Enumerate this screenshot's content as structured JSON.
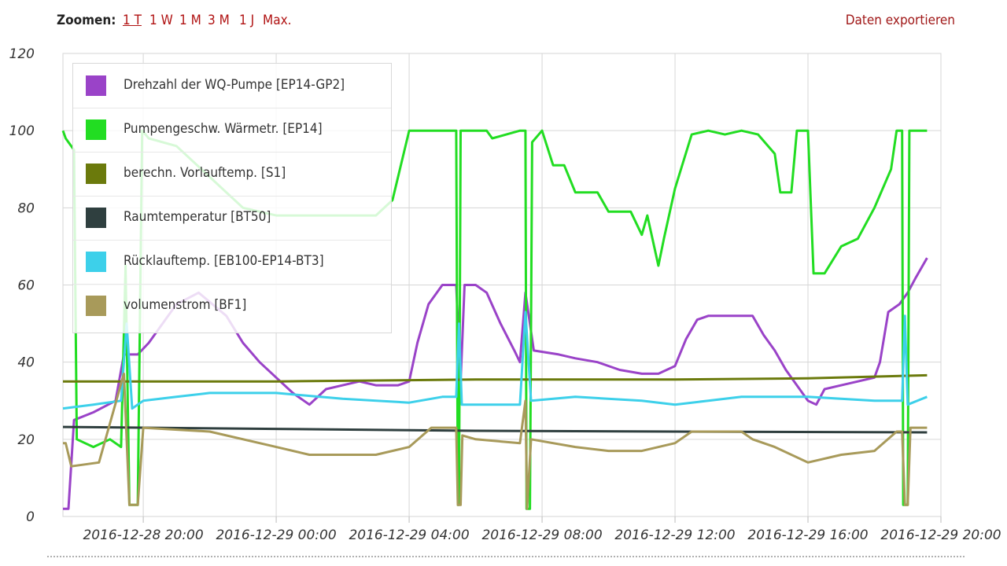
{
  "toolbar": {
    "zoom_label": "Zoomen:",
    "zoom_options": [
      "1 T",
      "1 W",
      "1 M",
      "3 M",
      "1 J",
      "Max."
    ],
    "export_label": "Daten exportieren"
  },
  "colors": {
    "purple": "#9a43c8",
    "green": "#22dd22",
    "olive": "#6b7a0c",
    "darkgray": "#2f3f3f",
    "cyan": "#3dd0ea",
    "khaki": "#a89a5a",
    "link": "#b01212"
  },
  "chart_data": {
    "type": "line",
    "title": "",
    "xlabel": "",
    "ylabel": "",
    "ylim": [
      0,
      120
    ],
    "xlim": [
      "2016-12-28 17:35",
      "2016-12-29 20:00"
    ],
    "yticks": [
      0,
      20,
      40,
      60,
      80,
      100,
      120
    ],
    "xticks": [
      "2016-12-28 20:00",
      "2016-12-29 00:00",
      "2016-12-29 04:00",
      "2016-12-29 08:00",
      "2016-12-29 12:00",
      "2016-12-29 16:00",
      "2016-12-29 20:00"
    ],
    "grid": true,
    "legend_position": "top-left",
    "series": [
      {
        "name": "Drehzahl der WQ-Pumpe [EP14-GP2]",
        "color": "#9a43c8",
        "points": [
          [
            "2016-12-28 17:35",
            2
          ],
          [
            "2016-12-28 17:45",
            2
          ],
          [
            "2016-12-28 17:55",
            25
          ],
          [
            "2016-12-28 18:30",
            27
          ],
          [
            "2016-12-28 19:10",
            30
          ],
          [
            "2016-12-28 19:25",
            42
          ],
          [
            "2016-12-28 19:50",
            42
          ],
          [
            "2016-12-28 20:10",
            45
          ],
          [
            "2016-12-28 21:00",
            55
          ],
          [
            "2016-12-28 21:40",
            58
          ],
          [
            "2016-12-28 22:30",
            52
          ],
          [
            "2016-12-28 23:00",
            45
          ],
          [
            "2016-12-28 23:30",
            40
          ],
          [
            "2016-12-29 00:00",
            36
          ],
          [
            "2016-12-29 00:30",
            32
          ],
          [
            "2016-12-29 01:00",
            29
          ],
          [
            "2016-12-29 01:30",
            33
          ],
          [
            "2016-12-29 02:00",
            34
          ],
          [
            "2016-12-29 02:30",
            35
          ],
          [
            "2016-12-29 03:00",
            34
          ],
          [
            "2016-12-29 03:40",
            34
          ],
          [
            "2016-12-29 04:00",
            35
          ],
          [
            "2016-12-29 04:15",
            45
          ],
          [
            "2016-12-29 04:35",
            55
          ],
          [
            "2016-12-29 05:00",
            60
          ],
          [
            "2016-12-29 05:25",
            60
          ],
          [
            "2016-12-29 05:33",
            35
          ],
          [
            "2016-12-29 05:40",
            60
          ],
          [
            "2016-12-29 06:00",
            60
          ],
          [
            "2016-12-29 06:20",
            58
          ],
          [
            "2016-12-29 06:45",
            50
          ],
          [
            "2016-12-29 07:10",
            43
          ],
          [
            "2016-12-29 07:20",
            40
          ],
          [
            "2016-12-29 07:30",
            58
          ],
          [
            "2016-12-29 07:45",
            43
          ],
          [
            "2016-12-29 08:30",
            42
          ],
          [
            "2016-12-29 09:00",
            41
          ],
          [
            "2016-12-29 09:40",
            40
          ],
          [
            "2016-12-29 10:20",
            38
          ],
          [
            "2016-12-29 11:00",
            37
          ],
          [
            "2016-12-29 11:30",
            37
          ],
          [
            "2016-12-29 12:00",
            39
          ],
          [
            "2016-12-29 12:20",
            46
          ],
          [
            "2016-12-29 12:40",
            51
          ],
          [
            "2016-12-29 13:00",
            52
          ],
          [
            "2016-12-29 13:40",
            52
          ],
          [
            "2016-12-29 14:20",
            52
          ],
          [
            "2016-12-29 14:40",
            47
          ],
          [
            "2016-12-29 15:00",
            43
          ],
          [
            "2016-12-29 15:20",
            38
          ],
          [
            "2016-12-29 15:40",
            34
          ],
          [
            "2016-12-29 16:00",
            30
          ],
          [
            "2016-12-29 16:15",
            29
          ],
          [
            "2016-12-29 16:30",
            33
          ],
          [
            "2016-12-29 17:00",
            34
          ],
          [
            "2016-12-29 17:30",
            35
          ],
          [
            "2016-12-29 18:00",
            36
          ],
          [
            "2016-12-29 18:10",
            40
          ],
          [
            "2016-12-29 18:25",
            53
          ],
          [
            "2016-12-29 18:45",
            55
          ],
          [
            "2016-12-29 19:00",
            58
          ],
          [
            "2016-12-29 19:15",
            62
          ],
          [
            "2016-12-29 19:35",
            67
          ]
        ]
      },
      {
        "name": "Pumpengeschw. Wärmetr. [EP14]",
        "color": "#22dd22",
        "points": [
          [
            "2016-12-28 17:35",
            100
          ],
          [
            "2016-12-28 17:40",
            98
          ],
          [
            "2016-12-28 17:55",
            95
          ],
          [
            "2016-12-28 18:00",
            20
          ],
          [
            "2016-12-28 18:30",
            18
          ],
          [
            "2016-12-28 19:00",
            20
          ],
          [
            "2016-12-28 19:20",
            18
          ],
          [
            "2016-12-28 19:28",
            65
          ],
          [
            "2016-12-28 19:35",
            3
          ],
          [
            "2016-12-28 19:50",
            3
          ],
          [
            "2016-12-28 19:58",
            100
          ],
          [
            "2016-12-28 20:10",
            98
          ],
          [
            "2016-12-28 21:00",
            96
          ],
          [
            "2016-12-28 22:00",
            88
          ],
          [
            "2016-12-28 23:00",
            80
          ],
          [
            "2016-12-29 00:00",
            78
          ],
          [
            "2016-12-29 01:00",
            78
          ],
          [
            "2016-12-29 02:00",
            78
          ],
          [
            "2016-12-29 03:00",
            78
          ],
          [
            "2016-12-29 03:30",
            82
          ],
          [
            "2016-12-29 04:00",
            100
          ],
          [
            "2016-12-29 05:00",
            100
          ],
          [
            "2016-12-29 05:25",
            100
          ],
          [
            "2016-12-29 05:28",
            3
          ],
          [
            "2016-12-29 05:30",
            3
          ],
          [
            "2016-12-29 05:33",
            100
          ],
          [
            "2016-12-29 06:00",
            100
          ],
          [
            "2016-12-29 06:20",
            100
          ],
          [
            "2016-12-29 06:30",
            98
          ],
          [
            "2016-12-29 07:20",
            100
          ],
          [
            "2016-12-29 07:30",
            100
          ],
          [
            "2016-12-29 07:32",
            2
          ],
          [
            "2016-12-29 07:38",
            2
          ],
          [
            "2016-12-29 07:42",
            97
          ],
          [
            "2016-12-29 08:00",
            100
          ],
          [
            "2016-12-29 08:20",
            91
          ],
          [
            "2016-12-29 08:40",
            91
          ],
          [
            "2016-12-29 09:00",
            84
          ],
          [
            "2016-12-29 09:40",
            84
          ],
          [
            "2016-12-29 10:00",
            79
          ],
          [
            "2016-12-29 10:40",
            79
          ],
          [
            "2016-12-29 11:00",
            73
          ],
          [
            "2016-12-29 11:10",
            78
          ],
          [
            "2016-12-29 11:30",
            65
          ],
          [
            "2016-12-29 11:40",
            72
          ],
          [
            "2016-12-29 12:00",
            85
          ],
          [
            "2016-12-29 12:30",
            99
          ],
          [
            "2016-12-29 13:00",
            100
          ],
          [
            "2016-12-29 13:30",
            99
          ],
          [
            "2016-12-29 14:00",
            100
          ],
          [
            "2016-12-29 14:30",
            99
          ],
          [
            "2016-12-29 15:00",
            94
          ],
          [
            "2016-12-29 15:10",
            84
          ],
          [
            "2016-12-29 15:30",
            84
          ],
          [
            "2016-12-29 15:40",
            100
          ],
          [
            "2016-12-29 16:00",
            100
          ],
          [
            "2016-12-29 16:10",
            63
          ],
          [
            "2016-12-29 16:30",
            63
          ],
          [
            "2016-12-29 17:00",
            70
          ],
          [
            "2016-12-29 17:30",
            72
          ],
          [
            "2016-12-29 18:00",
            80
          ],
          [
            "2016-12-29 18:30",
            90
          ],
          [
            "2016-12-29 18:40",
            100
          ],
          [
            "2016-12-29 18:50",
            100
          ],
          [
            "2016-12-29 18:52",
            3
          ],
          [
            "2016-12-29 19:00",
            3
          ],
          [
            "2016-12-29 19:03",
            100
          ],
          [
            "2016-12-29 19:35",
            100
          ]
        ]
      },
      {
        "name": "berechn. Vorlauftemp. [S1]",
        "color": "#6b7a0c",
        "points": [
          [
            "2016-12-28 17:35",
            35
          ],
          [
            "2016-12-29 00:00",
            35
          ],
          [
            "2016-12-29 06:00",
            35.5
          ],
          [
            "2016-12-29 12:00",
            35.5
          ],
          [
            "2016-12-29 16:00",
            35.8
          ],
          [
            "2016-12-29 19:35",
            36.6
          ]
        ]
      },
      {
        "name": "Raumtemperatur [BT50]",
        "color": "#2f3f3f",
        "points": [
          [
            "2016-12-28 17:35",
            23.2
          ],
          [
            "2016-12-29 00:00",
            22.7
          ],
          [
            "2016-12-29 06:00",
            22.2
          ],
          [
            "2016-12-29 12:00",
            22.0
          ],
          [
            "2016-12-29 19:35",
            21.8
          ]
        ]
      },
      {
        "name": "Rücklauftemp. [EB100-EP14-BT3]",
        "color": "#3dd0ea",
        "points": [
          [
            "2016-12-28 17:35",
            28
          ],
          [
            "2016-12-28 18:30",
            29
          ],
          [
            "2016-12-28 19:20",
            30
          ],
          [
            "2016-12-28 19:30",
            50
          ],
          [
            "2016-12-28 19:40",
            28
          ],
          [
            "2016-12-28 20:00",
            30
          ],
          [
            "2016-12-28 21:00",
            31
          ],
          [
            "2016-12-28 22:00",
            32
          ],
          [
            "2016-12-29 00:00",
            32
          ],
          [
            "2016-12-29 02:00",
            30.5
          ],
          [
            "2016-12-29 04:00",
            29.5
          ],
          [
            "2016-12-29 05:00",
            31
          ],
          [
            "2016-12-29 05:25",
            31
          ],
          [
            "2016-12-29 05:30",
            50
          ],
          [
            "2016-12-29 05:35",
            29
          ],
          [
            "2016-12-29 07:20",
            29
          ],
          [
            "2016-12-29 07:30",
            53
          ],
          [
            "2016-12-29 07:40",
            30
          ],
          [
            "2016-12-29 09:00",
            31
          ],
          [
            "2016-12-29 11:00",
            30
          ],
          [
            "2016-12-29 12:00",
            29
          ],
          [
            "2016-12-29 14:00",
            31
          ],
          [
            "2016-12-29 16:00",
            31
          ],
          [
            "2016-12-29 18:00",
            30
          ],
          [
            "2016-12-29 18:50",
            30
          ],
          [
            "2016-12-29 18:55",
            52
          ],
          [
            "2016-12-29 19:00",
            29
          ],
          [
            "2016-12-29 19:35",
            31
          ]
        ]
      },
      {
        "name": "volumenstrom [BF1]",
        "color": "#a89a5a",
        "points": [
          [
            "2016-12-28 17:35",
            19
          ],
          [
            "2016-12-28 17:40",
            19
          ],
          [
            "2016-12-28 17:50",
            13
          ],
          [
            "2016-12-28 18:40",
            14
          ],
          [
            "2016-12-28 19:25",
            37
          ],
          [
            "2016-12-28 19:35",
            3
          ],
          [
            "2016-12-28 19:50",
            3
          ],
          [
            "2016-12-28 20:00",
            23
          ],
          [
            "2016-12-28 22:00",
            22
          ],
          [
            "2016-12-29 00:00",
            18
          ],
          [
            "2016-12-29 01:00",
            16
          ],
          [
            "2016-12-29 02:00",
            16
          ],
          [
            "2016-12-29 03:00",
            16
          ],
          [
            "2016-12-29 04:00",
            18
          ],
          [
            "2016-12-29 04:40",
            23
          ],
          [
            "2016-12-29 05:25",
            23
          ],
          [
            "2016-12-29 05:28",
            3
          ],
          [
            "2016-12-29 05:33",
            3
          ],
          [
            "2016-12-29 05:36",
            21
          ],
          [
            "2016-12-29 06:00",
            20
          ],
          [
            "2016-12-29 07:20",
            19
          ],
          [
            "2016-12-29 07:30",
            30
          ],
          [
            "2016-12-29 07:33",
            2
          ],
          [
            "2016-12-29 07:40",
            20
          ],
          [
            "2016-12-29 09:00",
            18
          ],
          [
            "2016-12-29 10:00",
            17
          ],
          [
            "2016-12-29 11:00",
            17
          ],
          [
            "2016-12-29 12:00",
            19
          ],
          [
            "2016-12-29 12:30",
            22
          ],
          [
            "2016-12-29 14:00",
            22
          ],
          [
            "2016-12-29 14:20",
            20
          ],
          [
            "2016-12-29 15:00",
            18
          ],
          [
            "2016-12-29 16:00",
            14
          ],
          [
            "2016-12-29 17:00",
            16
          ],
          [
            "2016-12-29 18:00",
            17
          ],
          [
            "2016-12-29 18:40",
            22
          ],
          [
            "2016-12-29 18:50",
            22
          ],
          [
            "2016-12-29 18:55",
            3
          ],
          [
            "2016-12-29 19:00",
            3
          ],
          [
            "2016-12-29 19:05",
            23
          ],
          [
            "2016-12-29 19:35",
            23
          ]
        ]
      }
    ]
  }
}
